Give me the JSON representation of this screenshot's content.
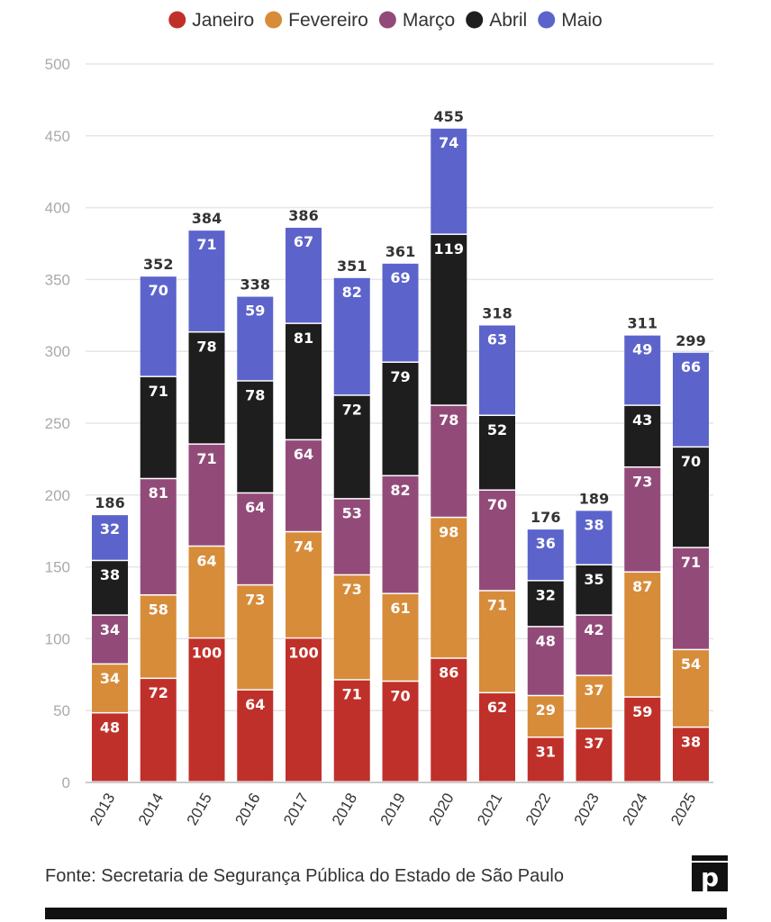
{
  "chart_data": {
    "type": "bar",
    "stacked": true,
    "categories": [
      "2013",
      "2014",
      "2015",
      "2016",
      "2017",
      "2018",
      "2019",
      "2020",
      "2021",
      "2022",
      "2023",
      "2024",
      "2025"
    ],
    "series": [
      {
        "name": "Janeiro",
        "color": "#c0302a",
        "values": [
          48,
          72,
          100,
          64,
          100,
          71,
          70,
          86,
          62,
          31,
          37,
          59,
          38
        ]
      },
      {
        "name": "Fevereiro",
        "color": "#d78c3a",
        "values": [
          34,
          58,
          64,
          73,
          74,
          73,
          61,
          98,
          71,
          29,
          37,
          87,
          54
        ]
      },
      {
        "name": "Março",
        "color": "#924b79",
        "values": [
          34,
          81,
          71,
          64,
          64,
          53,
          82,
          78,
          70,
          48,
          42,
          73,
          71
        ]
      },
      {
        "name": "Abril",
        "color": "#1e1e1e",
        "values": [
          38,
          71,
          78,
          78,
          81,
          72,
          79,
          119,
          52,
          32,
          35,
          43,
          70
        ]
      },
      {
        "name": "Maio",
        "color": "#5c64cb",
        "values": [
          32,
          70,
          71,
          59,
          67,
          82,
          69,
          74,
          63,
          36,
          38,
          49,
          66
        ]
      }
    ],
    "totals": [
      186,
      352,
      384,
      338,
      386,
      351,
      361,
      455,
      318,
      176,
      189,
      311,
      299
    ],
    "ylim": [
      0,
      500
    ],
    "yticks": [
      0,
      50,
      100,
      150,
      200,
      250,
      300,
      350,
      400,
      450,
      500
    ],
    "grid": true,
    "legend_position": "top-center"
  },
  "footer": {
    "source": "Fonte: Secretaria de Segurança Pública do Estado de São Paulo",
    "logo_letter": "p"
  }
}
